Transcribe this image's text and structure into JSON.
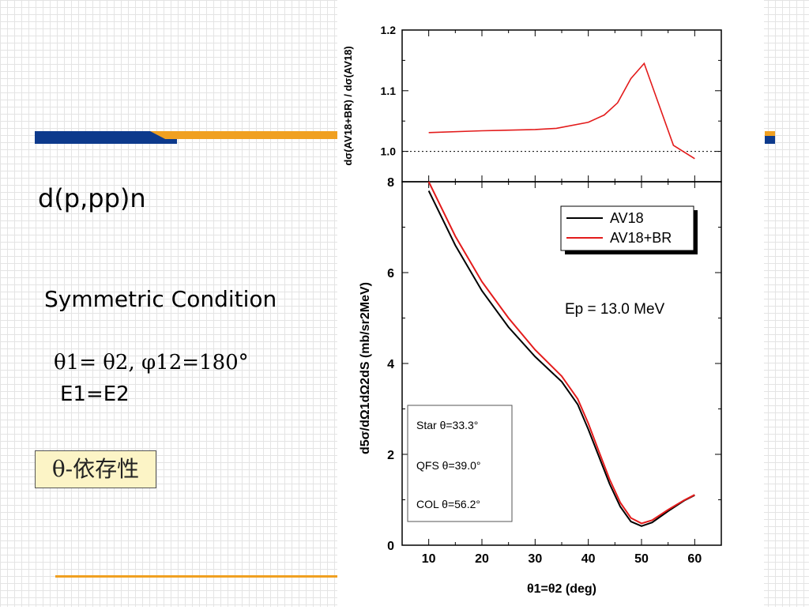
{
  "slide": {
    "title": "d(p,pp)n",
    "condition": "Symmetric Condition",
    "eq_theta": "θ1= θ2,  φ12=180°",
    "eq_energy": "E1=E2",
    "badge": "θ-依存性"
  },
  "colors": {
    "av18": "#000000",
    "av18br": "#e31b1b",
    "accent_orange": "#f0a021",
    "accent_blue": "#0d3a8c"
  },
  "chart_data": [
    {
      "type": "line",
      "ylabel": "dσ(AV18+BR) / dσ(AV18)",
      "xlim": [
        5,
        65
      ],
      "ylim": [
        0.95,
        1.2
      ],
      "yticks": [
        "1.0",
        "1.1",
        "1.2"
      ],
      "reference_line": 1.0,
      "series": [
        {
          "name": "AV18+BR",
          "x": [
            10,
            20,
            30,
            34,
            40,
            43,
            45.5,
            48,
            50.5,
            56,
            60
          ],
          "y": [
            1.031,
            1.034,
            1.036,
            1.038,
            1.048,
            1.06,
            1.08,
            1.12,
            1.145,
            1.01,
            0.988
          ]
        }
      ]
    },
    {
      "type": "line",
      "xlabel": "θ1=θ2  (deg)",
      "ylabel": "d5σ/dΩ1dΩ2dS  (mb/sr2MeV)",
      "xlim": [
        5,
        65
      ],
      "ylim": [
        0,
        8
      ],
      "xticks": [
        "10",
        "20",
        "30",
        "40",
        "50",
        "60"
      ],
      "yticks": [
        "0",
        "2",
        "4",
        "6",
        "8"
      ],
      "legend": [
        "AV18",
        "AV18+BR"
      ],
      "legend_position": "top-right",
      "annotation": "Ep = 13.0 MeV",
      "inset_box": [
        "Star θ=33.3°",
        "QFS θ=39.0°",
        "COL θ=56.2°"
      ],
      "series": [
        {
          "name": "AV18",
          "x": [
            10,
            15,
            20,
            25,
            30,
            35,
            38,
            40,
            42,
            44,
            46,
            48,
            50,
            52,
            55,
            58,
            60
          ],
          "y": [
            7.8,
            6.6,
            5.6,
            4.8,
            4.15,
            3.6,
            3.1,
            2.55,
            1.95,
            1.35,
            0.85,
            0.52,
            0.42,
            0.5,
            0.75,
            0.98,
            1.1
          ]
        },
        {
          "name": "AV18+BR",
          "x": [
            10,
            15,
            20,
            25,
            30,
            35,
            38,
            40,
            42,
            44,
            46,
            48,
            50,
            52,
            55,
            58,
            60
          ],
          "y": [
            8.0,
            6.8,
            5.8,
            5.0,
            4.3,
            3.72,
            3.22,
            2.68,
            2.06,
            1.45,
            0.94,
            0.6,
            0.48,
            0.55,
            0.78,
            0.99,
            1.11
          ]
        }
      ]
    }
  ]
}
